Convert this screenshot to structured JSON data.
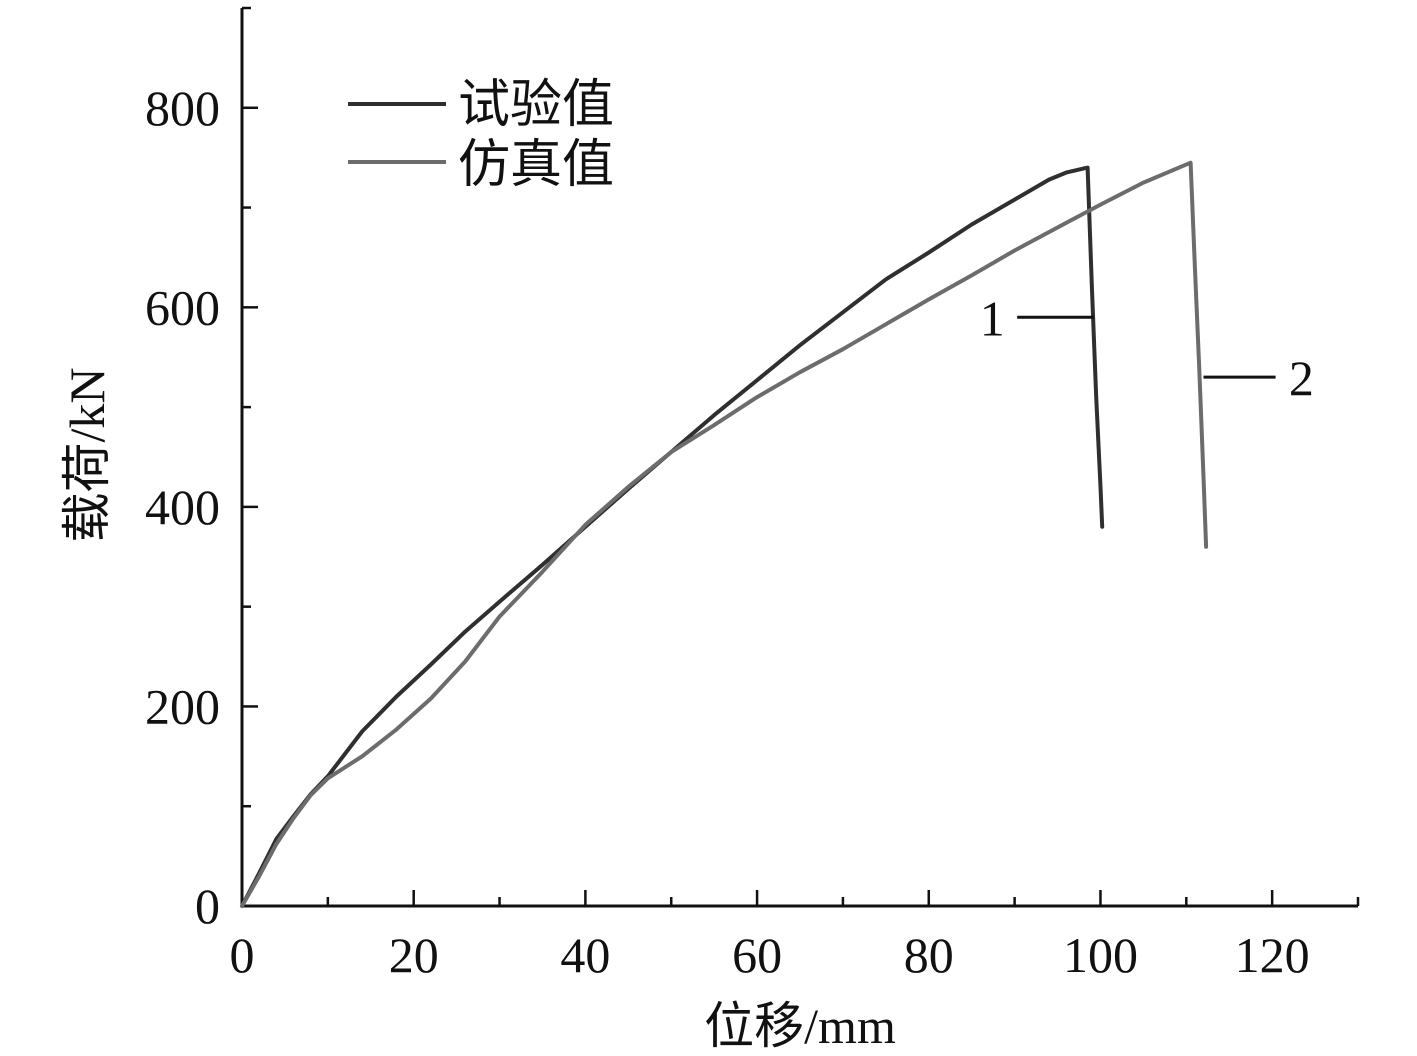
{
  "chart_data": {
    "type": "line",
    "title": "",
    "xlabel": "位移/mm",
    "ylabel": "载荷/kN",
    "xlim": [
      0,
      130
    ],
    "ylim": [
      0,
      900
    ],
    "x_major_ticks": [
      0,
      20,
      40,
      60,
      80,
      100,
      120
    ],
    "x_minor_ticks": [
      10,
      30,
      50,
      70,
      90,
      110,
      130
    ],
    "x_tick_labels": [
      "0",
      "20",
      "40",
      "60",
      "80",
      "100",
      "120"
    ],
    "y_major_ticks": [
      0,
      200,
      400,
      600,
      800
    ],
    "y_minor_ticks": [
      100,
      300,
      500,
      700,
      900
    ],
    "y_tick_labels": [
      "0",
      "200",
      "400",
      "600",
      "800"
    ],
    "grid": false,
    "legend_position": "top-left",
    "series": [
      {
        "name": "试验值",
        "annotation": "1",
        "color": "#2f2f2f",
        "x": [
          0,
          2,
          4,
          6,
          8,
          10,
          14,
          18,
          22,
          26,
          30,
          35,
          40,
          45,
          50,
          55,
          60,
          65,
          70,
          75,
          80,
          85,
          90,
          94,
          96,
          98.5,
          99,
          99.5,
          100,
          100.2
        ],
        "y": [
          0,
          33,
          67,
          90,
          112,
          130,
          175,
          210,
          242,
          275,
          305,
          342,
          380,
          418,
          455,
          492,
          527,
          562,
          595,
          628,
          655,
          683,
          708,
          728,
          735,
          740,
          620,
          510,
          420,
          380
        ]
      },
      {
        "name": "仿真值",
        "annotation": "2",
        "color": "#6c6c6c",
        "x": [
          0,
          2,
          4,
          6,
          8,
          10,
          14,
          18,
          22,
          26,
          30,
          35,
          40,
          45,
          50,
          55,
          60,
          65,
          70,
          75,
          80,
          85,
          90,
          95,
          100,
          105,
          110.5,
          111,
          111.5,
          112,
          112.3
        ],
        "y": [
          0,
          30,
          62,
          88,
          111,
          128,
          150,
          177,
          208,
          245,
          290,
          335,
          382,
          420,
          455,
          482,
          510,
          535,
          558,
          583,
          608,
          632,
          657,
          680,
          703,
          725,
          745,
          640,
          540,
          430,
          360
        ]
      }
    ]
  }
}
